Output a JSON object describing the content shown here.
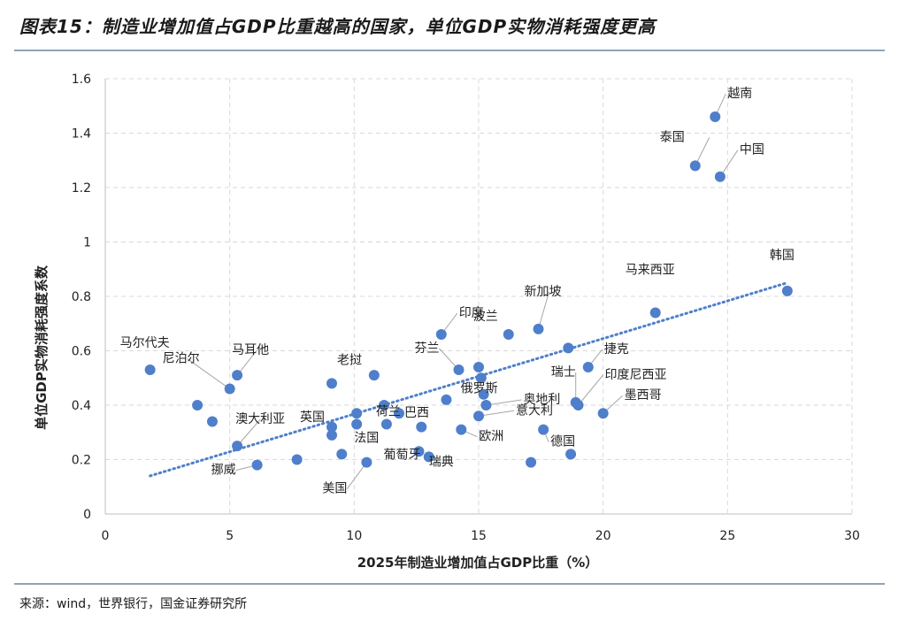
{
  "figure": {
    "title": "图表15：制造业增加值占GDP比重越高的国家，单位GDP实物消耗强度更高",
    "source": "来源：wind，世界银行，国金证券研究所"
  },
  "chart_data": {
    "type": "scatter",
    "xlabel": "2025年制造业增加值占GDP比重（%）",
    "ylabel": "单位GDP实物消耗强度系数",
    "xlim": [
      0,
      30
    ],
    "ylim": [
      0,
      1.6
    ],
    "xticks": [
      0,
      5,
      10,
      15,
      20,
      25,
      30
    ],
    "yticks": [
      0,
      0.2,
      0.4,
      0.6,
      0.8,
      1,
      1.2,
      1.4,
      1.6
    ],
    "grid": "horizontal and vertical dashed",
    "point_color": "#4f7fca",
    "trend_color": "#4f7fca",
    "trendline": {
      "type": "linear",
      "x": [
        1.8,
        27.4
      ],
      "y": [
        0.14,
        0.85
      ]
    },
    "labeled_points": [
      {
        "label": "越南",
        "x": 24.5,
        "y": 1.46
      },
      {
        "label": "泰国",
        "x": 23.7,
        "y": 1.28
      },
      {
        "label": "中国",
        "x": 24.7,
        "y": 1.24
      },
      {
        "label": "韩国",
        "x": 27.4,
        "y": 0.82
      },
      {
        "label": "马来西亚",
        "x": 22.1,
        "y": 0.74
      },
      {
        "label": "新加坡",
        "x": 17.4,
        "y": 0.68
      },
      {
        "label": "印度",
        "x": 13.5,
        "y": 0.66
      },
      {
        "label": "波兰",
        "x": 16.2,
        "y": 0.66
      },
      {
        "label": "芬兰",
        "x": 14.2,
        "y": 0.53
      },
      {
        "label": "捷克",
        "x": 19.4,
        "y": 0.54
      },
      {
        "label": "瑞士",
        "x": 18.9,
        "y": 0.41
      },
      {
        "label": "印度尼西亚",
        "x": 19.0,
        "y": 0.4
      },
      {
        "label": "墨西哥",
        "x": 20.0,
        "y": 0.37
      },
      {
        "label": "俄罗斯",
        "x": 15.2,
        "y": 0.44
      },
      {
        "label": "奥地利",
        "x": 15.3,
        "y": 0.4
      },
      {
        "label": "意大利",
        "x": 15.0,
        "y": 0.36
      },
      {
        "label": "德国",
        "x": 17.6,
        "y": 0.31
      },
      {
        "label": "欧洲",
        "x": 14.3,
        "y": 0.31
      },
      {
        "label": "瑞典",
        "x": 13.0,
        "y": 0.21
      },
      {
        "label": "葡萄牙",
        "x": 12.6,
        "y": 0.23
      },
      {
        "label": "巴西",
        "x": 11.8,
        "y": 0.37
      },
      {
        "label": "荷兰",
        "x": 11.3,
        "y": 0.33
      },
      {
        "label": "老挝",
        "x": 9.1,
        "y": 0.48
      },
      {
        "label": "法国",
        "x": 9.5,
        "y": 0.22
      },
      {
        "label": "英国",
        "x": 9.1,
        "y": 0.29
      },
      {
        "label": "美国",
        "x": 10.5,
        "y": 0.19
      },
      {
        "label": "挪威",
        "x": 6.1,
        "y": 0.18
      },
      {
        "label": "澳大利亚",
        "x": 5.3,
        "y": 0.25
      },
      {
        "label": "马尔代夫",
        "x": 1.8,
        "y": 0.53
      },
      {
        "label": "马耳他",
        "x": 5.3,
        "y": 0.51
      },
      {
        "label": "尼泊尔",
        "x": 5.0,
        "y": 0.46
      }
    ],
    "unlabeled_points": [
      {
        "x": 3.7,
        "y": 0.4
      },
      {
        "x": 4.3,
        "y": 0.34
      },
      {
        "x": 7.7,
        "y": 0.2
      },
      {
        "x": 9.1,
        "y": 0.32
      },
      {
        "x": 10.1,
        "y": 0.33
      },
      {
        "x": 10.1,
        "y": 0.37
      },
      {
        "x": 10.8,
        "y": 0.51
      },
      {
        "x": 11.2,
        "y": 0.4
      },
      {
        "x": 12.7,
        "y": 0.32
      },
      {
        "x": 13.7,
        "y": 0.42
      },
      {
        "x": 15.0,
        "y": 0.54
      },
      {
        "x": 15.1,
        "y": 0.5
      },
      {
        "x": 18.6,
        "y": 0.61
      },
      {
        "x": 17.1,
        "y": 0.19
      },
      {
        "x": 18.7,
        "y": 0.22
      }
    ]
  }
}
